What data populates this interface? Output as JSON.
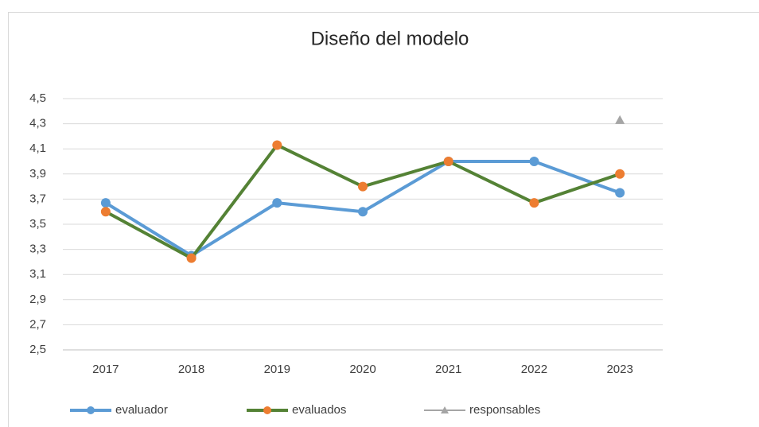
{
  "chart_data": {
    "type": "line",
    "title": "Diseño del modelo",
    "categories": [
      "2017",
      "2018",
      "2019",
      "2020",
      "2021",
      "2022",
      "2023"
    ],
    "series": [
      {
        "name": "evaluador",
        "color": "#5b9bd5",
        "marker_color": "#5b9bd5",
        "marker": "circle",
        "values": [
          3.67,
          3.25,
          3.67,
          3.6,
          4.0,
          4.0,
          3.75
        ]
      },
      {
        "name": "evaluados",
        "color": "#548235",
        "marker_color": "#ed7d31",
        "marker": "circle",
        "values": [
          3.6,
          3.23,
          4.13,
          3.8,
          4.0,
          3.67,
          3.9
        ]
      },
      {
        "name": "responsables",
        "color": "#a5a5a5",
        "marker_color": "#a5a5a5",
        "marker": "triangle",
        "values": [
          null,
          null,
          null,
          null,
          null,
          null,
          4.33
        ]
      }
    ],
    "ylim": [
      2.5,
      4.5
    ],
    "yticks": [
      {
        "value": 2.5,
        "label": "2,5"
      },
      {
        "value": 2.7,
        "label": "2,7"
      },
      {
        "value": 2.9,
        "label": "2,9"
      },
      {
        "value": 3.1,
        "label": "3,1"
      },
      {
        "value": 3.3,
        "label": "3,3"
      },
      {
        "value": 3.5,
        "label": "3,5"
      },
      {
        "value": 3.7,
        "label": "3,7"
      },
      {
        "value": 3.9,
        "label": "3,9"
      },
      {
        "value": 4.1,
        "label": "4,1"
      },
      {
        "value": 4.3,
        "label": "4,3"
      },
      {
        "value": 4.5,
        "label": "4,5"
      }
    ],
    "grid": true,
    "legend": "bottom"
  }
}
